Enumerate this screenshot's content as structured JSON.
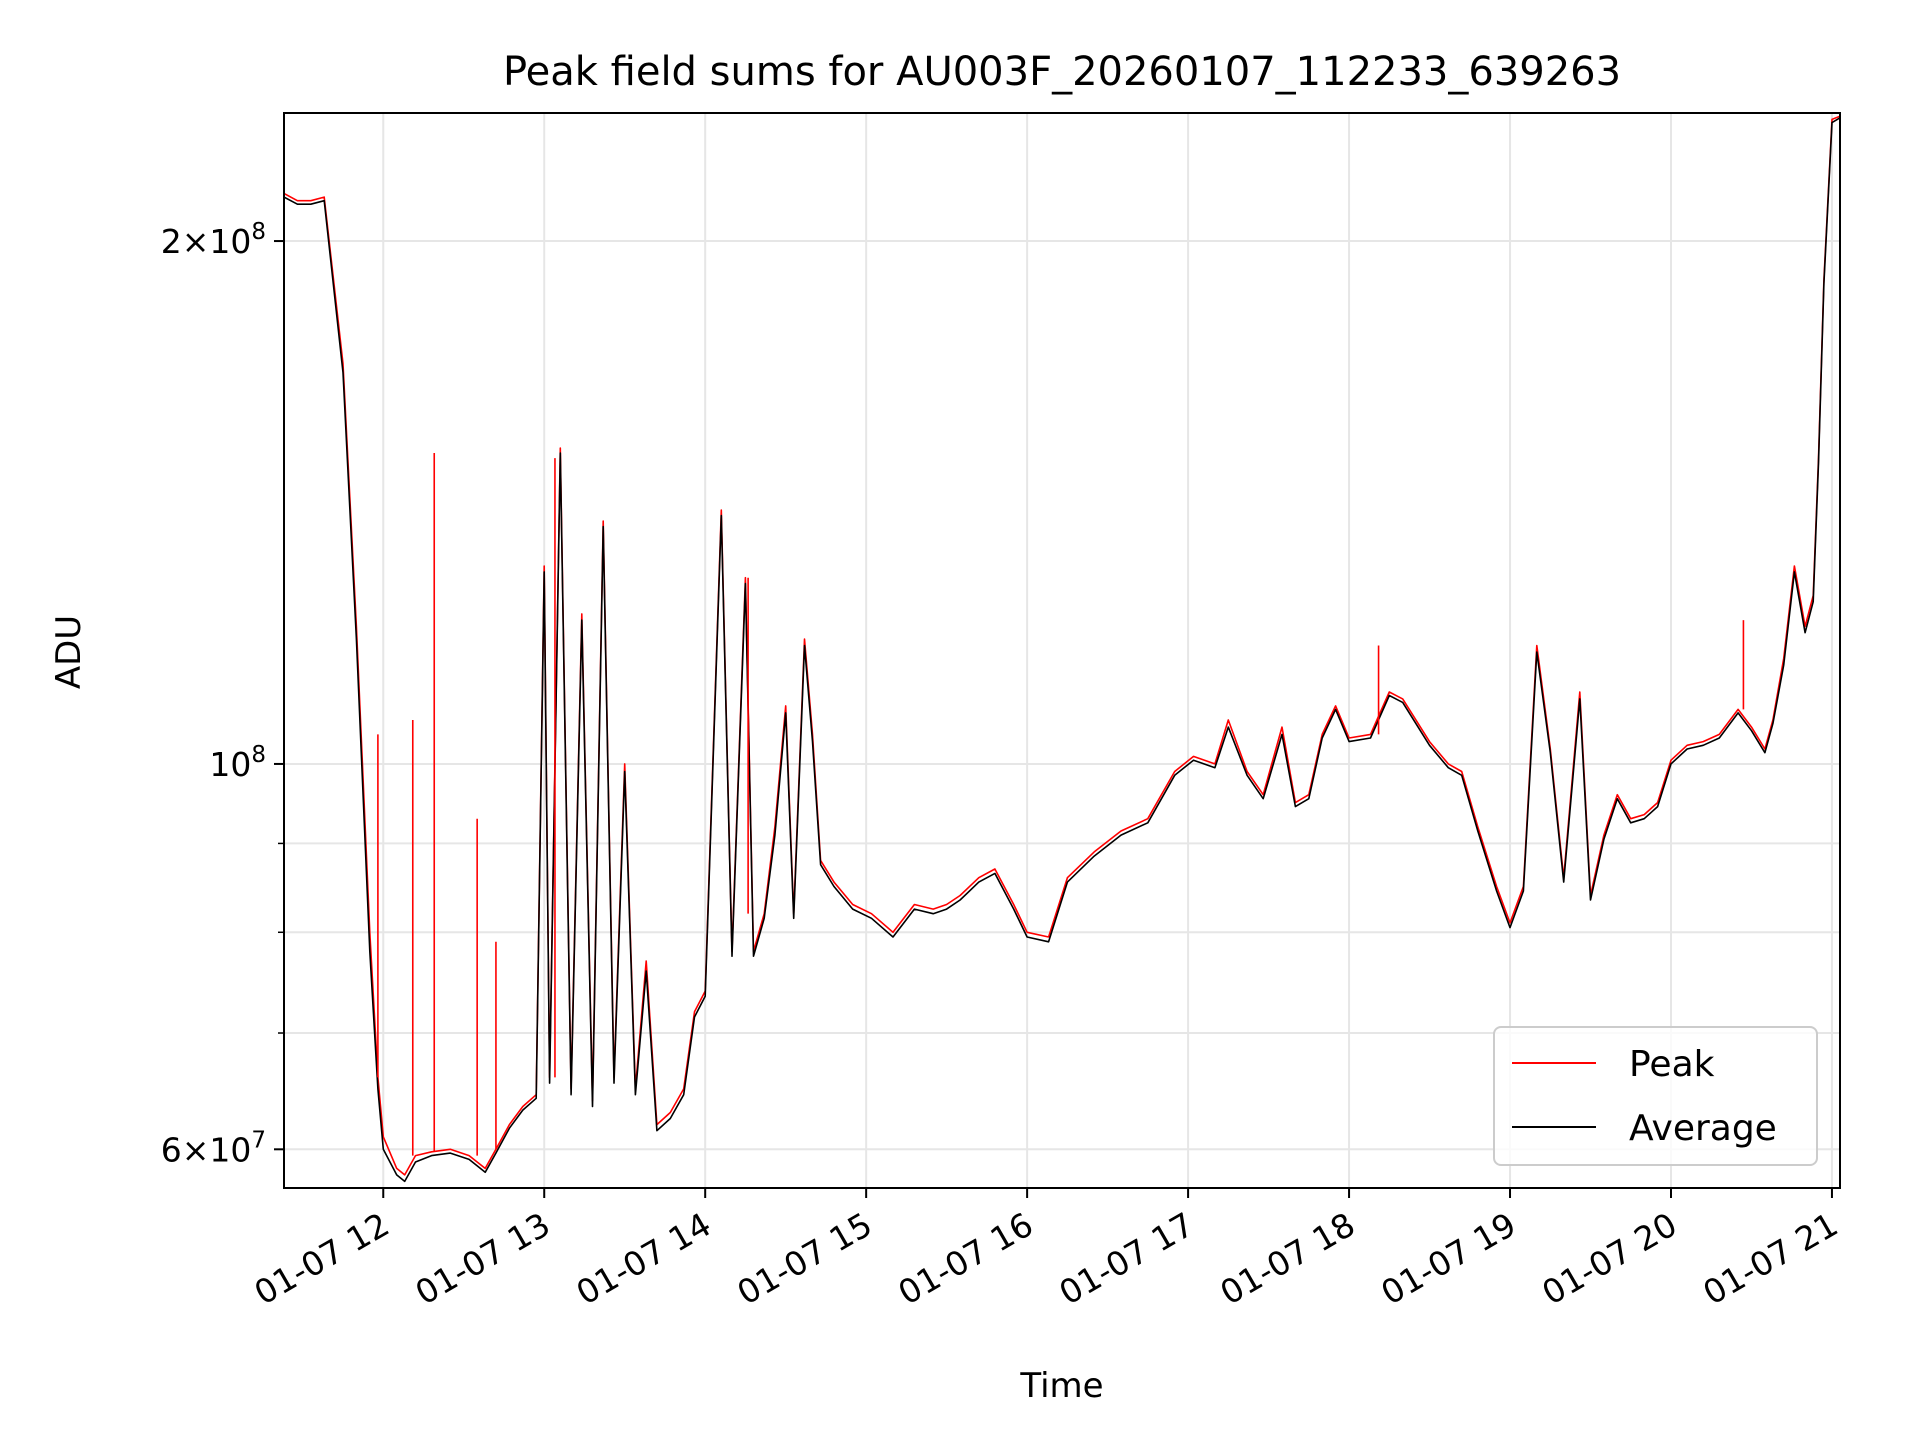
{
  "chart_data": {
    "type": "line",
    "title": "Peak field sums for AU003F_20260107_112233_639263",
    "xlabel": "Time",
    "ylabel": "ADU",
    "y_scale": "log",
    "grid": true,
    "legend_placement": "lower right",
    "xlim": [
      "01-07 11:23",
      "01-07 21:03"
    ],
    "ylim": [
      57000000,
      237000000
    ],
    "x_ticks": [
      {
        "value": "01-07 12:00",
        "label": "01-07 12"
      },
      {
        "value": "01-07 13:00",
        "label": "01-07 13"
      },
      {
        "value": "01-07 14:00",
        "label": "01-07 14"
      },
      {
        "value": "01-07 15:00",
        "label": "01-07 15"
      },
      {
        "value": "01-07 16:00",
        "label": "01-07 16"
      },
      {
        "value": "01-07 17:00",
        "label": "01-07 17"
      },
      {
        "value": "01-07 18:00",
        "label": "01-07 18"
      },
      {
        "value": "01-07 19:00",
        "label": "01-07 19"
      },
      {
        "value": "01-07 20:00",
        "label": "01-07 20"
      },
      {
        "value": "01-07 21:00",
        "label": "01-07 21"
      }
    ],
    "y_major_ticks": [
      {
        "value": 60000000,
        "label_base": "6×10",
        "label_exp": "7"
      },
      {
        "value": 100000000,
        "label_base": "10",
        "label_exp": "8"
      },
      {
        "value": 200000000,
        "label_base": "2×10",
        "label_exp": "8"
      }
    ],
    "y_minor_ticks": [
      70000000,
      80000000,
      90000000
    ],
    "x": [
      "01-07 11:23",
      "01-07 11:28",
      "01-07 11:33",
      "01-07 11:38",
      "01-07 11:45",
      "01-07 11:50",
      "01-07 11:55",
      "01-07 11:58",
      "01-07 12:00",
      "01-07 12:05",
      "01-07 12:08",
      "01-07 12:12",
      "01-07 12:18",
      "01-07 12:25",
      "01-07 12:32",
      "01-07 12:38",
      "01-07 12:42",
      "01-07 12:47",
      "01-07 12:52",
      "01-07 12:57",
      "01-07 13:00",
      "01-07 13:02",
      "01-07 13:06",
      "01-07 13:10",
      "01-07 13:14",
      "01-07 13:18",
      "01-07 13:22",
      "01-07 13:26",
      "01-07 13:30",
      "01-07 13:34",
      "01-07 13:38",
      "01-07 13:42",
      "01-07 13:47",
      "01-07 13:52",
      "01-07 13:56",
      "01-07 14:00",
      "01-07 14:06",
      "01-07 14:10",
      "01-07 14:15",
      "01-07 14:18",
      "01-07 14:22",
      "01-07 14:26",
      "01-07 14:30",
      "01-07 14:33",
      "01-07 14:37",
      "01-07 14:40",
      "01-07 14:43",
      "01-07 14:48",
      "01-07 14:55",
      "01-07 15:02",
      "01-07 15:10",
      "01-07 15:18",
      "01-07 15:25",
      "01-07 15:30",
      "01-07 15:35",
      "01-07 15:42",
      "01-07 15:48",
      "01-07 15:55",
      "01-07 16:00",
      "01-07 16:08",
      "01-07 16:15",
      "01-07 16:25",
      "01-07 16:35",
      "01-07 16:45",
      "01-07 16:55",
      "01-07 17:02",
      "01-07 17:10",
      "01-07 17:15",
      "01-07 17:22",
      "01-07 17:28",
      "01-07 17:35",
      "01-07 17:40",
      "01-07 17:45",
      "01-07 17:50",
      "01-07 17:55",
      "01-07 18:00",
      "01-07 18:08",
      "01-07 18:15",
      "01-07 18:20",
      "01-07 18:30",
      "01-07 18:37",
      "01-07 18:42",
      "01-07 18:48",
      "01-07 18:55",
      "01-07 19:00",
      "01-07 19:05",
      "01-07 19:10",
      "01-07 19:15",
      "01-07 19:20",
      "01-07 19:26",
      "01-07 19:30",
      "01-07 19:35",
      "01-07 19:40",
      "01-07 19:45",
      "01-07 19:50",
      "01-07 19:55",
      "01-07 20:00",
      "01-07 20:06",
      "01-07 20:12",
      "01-07 20:18",
      "01-07 20:25",
      "01-07 20:30",
      "01-07 20:35",
      "01-07 20:38",
      "01-07 20:42",
      "01-07 20:46",
      "01-07 20:50",
      "01-07 20:53",
      "01-07 20:55",
      "01-07 20:57",
      "01-07 21:00",
      "01-07 21:03"
    ],
    "series": [
      {
        "name": "Peak",
        "color": "#ff0000",
        "values": [
          213000000,
          211000000,
          211000000,
          212000000,
          170000000,
          120000000,
          80000000,
          66000000,
          61000000,
          58500000,
          58000000,
          59500000,
          59800000,
          60000000,
          59500000,
          58500000,
          60000000,
          62000000,
          63500000,
          64500000,
          130000000,
          66000000,
          152000000,
          65000000,
          122000000,
          64000000,
          138000000,
          66000000,
          100000000,
          65000000,
          77000000,
          62000000,
          63000000,
          65000000,
          72000000,
          74000000,
          140000000,
          78000000,
          128000000,
          78000000,
          82000000,
          92000000,
          108000000,
          82000000,
          118000000,
          104000000,
          88000000,
          85500000,
          83000000,
          82000000,
          80000000,
          83000000,
          82500000,
          83000000,
          84000000,
          86000000,
          87000000,
          83000000,
          80000000,
          79500000,
          86000000,
          89000000,
          91500000,
          93000000,
          99000000,
          101000000,
          100000000,
          106000000,
          99000000,
          96000000,
          105000000,
          95000000,
          96000000,
          104000000,
          108000000,
          103500000,
          104000000,
          110000000,
          109000000,
          103000000,
          100000000,
          99000000,
          92000000,
          85000000,
          81000000,
          85000000,
          117000000,
          102000000,
          86000000,
          110000000,
          84000000,
          91000000,
          96000000,
          93000000,
          93500000,
          95000000,
          100500000,
          102500000,
          103000000,
          104000000,
          107500000,
          105000000,
          102000000,
          106000000,
          115000000,
          130000000,
          120000000,
          125000000,
          150000000,
          190000000,
          235000000,
          236000000
        ]
      },
      {
        "name": "Average",
        "color": "#000000",
        "values": [
          212000000,
          210000000,
          210000000,
          211000000,
          168000000,
          118000000,
          78000000,
          65000000,
          60000000,
          58000000,
          57500000,
          59000000,
          59500000,
          59700000,
          59200000,
          58200000,
          59700000,
          61700000,
          63200000,
          64200000,
          129000000,
          65500000,
          151000000,
          64500000,
          121000000,
          63500000,
          137000000,
          65500000,
          99000000,
          64500000,
          76000000,
          61500000,
          62500000,
          64500000,
          71500000,
          73500000,
          139000000,
          77500000,
          127000000,
          77500000,
          81500000,
          91000000,
          107000000,
          81500000,
          117000000,
          103000000,
          87500000,
          85000000,
          82500000,
          81500000,
          79500000,
          82500000,
          82000000,
          82500000,
          83500000,
          85500000,
          86500000,
          82500000,
          79500000,
          79000000,
          85500000,
          88500000,
          91000000,
          92500000,
          98500000,
          100500000,
          99500000,
          105000000,
          98500000,
          95500000,
          104000000,
          94500000,
          95500000,
          103500000,
          107500000,
          103000000,
          103500000,
          109500000,
          108500000,
          102500000,
          99500000,
          98500000,
          91500000,
          84500000,
          80500000,
          84500000,
          116000000,
          101500000,
          85500000,
          109000000,
          83500000,
          90500000,
          95500000,
          92500000,
          93000000,
          94500000,
          100000000,
          102000000,
          102500000,
          103500000,
          107000000,
          104500000,
          101500000,
          105500000,
          114000000,
          129000000,
          119000000,
          124000000,
          149000000,
          189000000,
          234000000,
          235500000
        ]
      }
    ],
    "spikes": {
      "series": "Peak",
      "x": [
        "01-07 11:58",
        "01-07 12:11",
        "01-07 12:19",
        "01-07 12:35",
        "01-07 12:42",
        "01-07 13:04",
        "01-07 14:16",
        "01-07 18:11",
        "01-07 20:27"
      ],
      "values": [
        104000000,
        106000000,
        151000000,
        93000000,
        79000000,
        150000000,
        82000000,
        117000000,
        121000000
      ]
    }
  },
  "legend": {
    "peak_label": "Peak",
    "average_label": "Average"
  }
}
